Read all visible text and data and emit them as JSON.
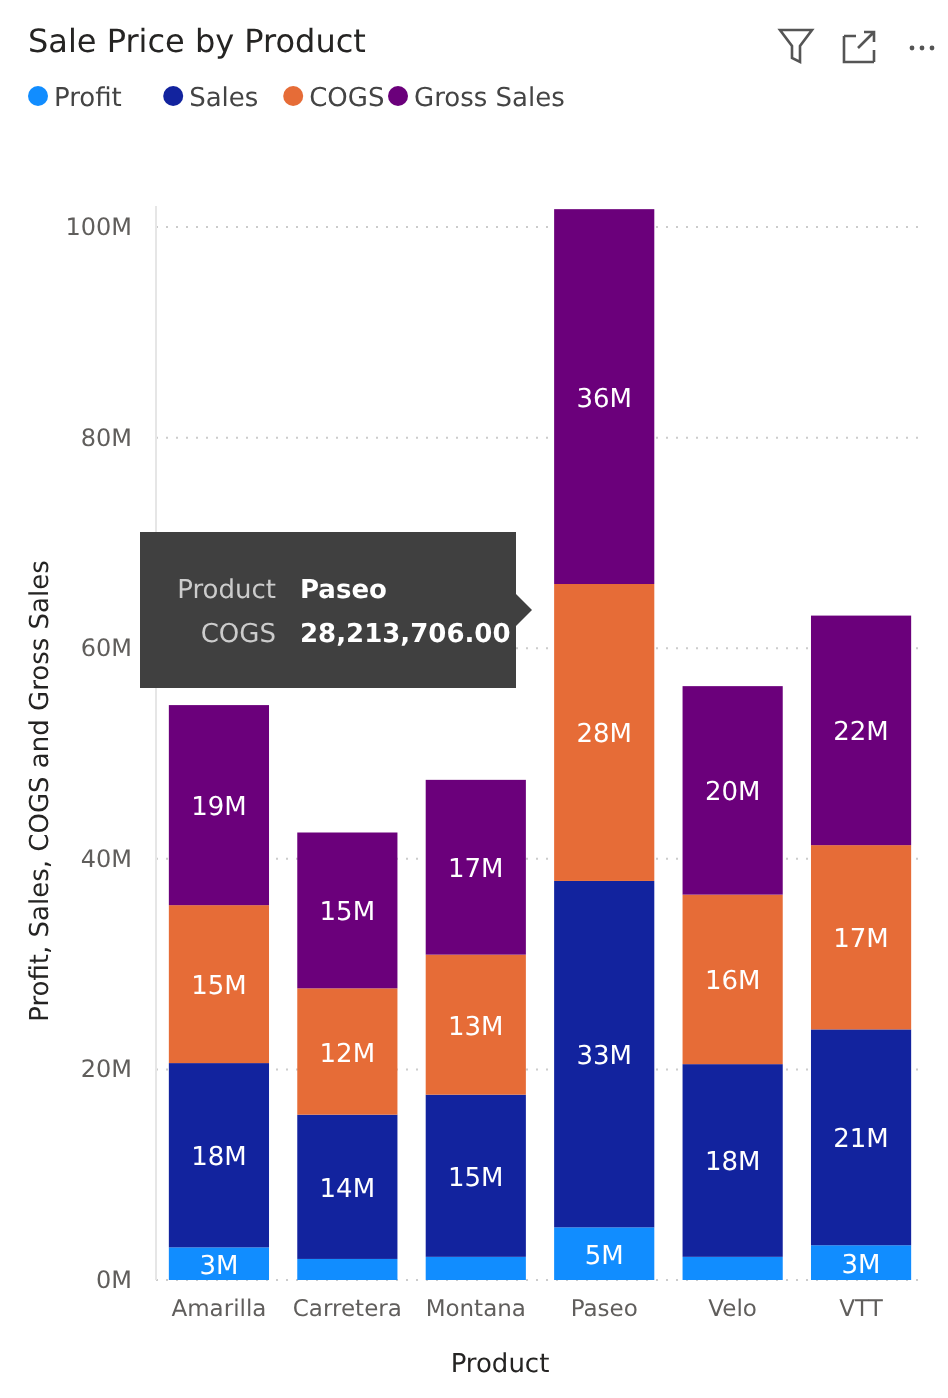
{
  "chart_data": {
    "type": "bar",
    "stacked": true,
    "title": "Sale Price by Product",
    "xlabel": "Product",
    "ylabel": "Profit, Sales, COGS and Gross Sales",
    "categories": [
      "Amarilla",
      "Carretera",
      "Montana",
      "Paseo",
      "Velo",
      "VTT"
    ],
    "series": [
      {
        "name": "Profit",
        "color": "#118dff",
        "values": [
          3.1,
          2.0,
          2.2,
          5.0,
          2.2,
          3.3
        ],
        "value_labels": [
          "3M",
          null,
          null,
          "5M",
          null,
          "3M"
        ]
      },
      {
        "name": "Sales",
        "color": "#12239e",
        "values": [
          17.5,
          13.7,
          15.4,
          32.9,
          18.3,
          20.5
        ],
        "value_labels": [
          "18M",
          "14M",
          "15M",
          "33M",
          "18M",
          "21M"
        ]
      },
      {
        "name": "COGS",
        "color": "#e66c37",
        "values": [
          15.0,
          12.0,
          13.3,
          28.2,
          16.1,
          17.5
        ],
        "value_labels": [
          "15M",
          "12M",
          "13M",
          "28M",
          "16M",
          "17M"
        ]
      },
      {
        "name": "Gross Sales",
        "color": "#6b007b",
        "values": [
          19.0,
          14.8,
          16.6,
          35.6,
          19.8,
          21.8
        ],
        "value_labels": [
          "19M",
          "15M",
          "17M",
          "36M",
          "20M",
          "22M"
        ]
      }
    ],
    "ylim": [
      0,
      102
    ],
    "yticks": [
      {
        "value": 0,
        "label": "0M"
      },
      {
        "value": 20,
        "label": "20M"
      },
      {
        "value": 40,
        "label": "40M"
      },
      {
        "value": 60,
        "label": "60M"
      },
      {
        "value": 80,
        "label": "80M"
      },
      {
        "value": 100,
        "label": "100M"
      }
    ],
    "grid": "y",
    "legend": "top left",
    "annotations": [
      "Product",
      "Paseo",
      "COGS",
      "28,213,706.00"
    ]
  }
}
